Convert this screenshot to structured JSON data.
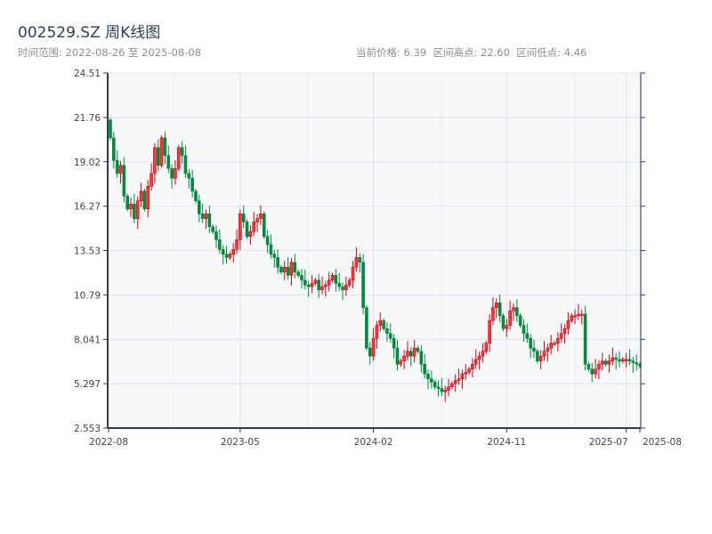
{
  "header": {
    "title": "002529.SZ 周K线图",
    "range": "时间范围: 2022-08-26 至 2025-08-08",
    "stats": "当前价格: 6.39  区间高点: 22.60  区间低点: 4.46"
  },
  "colors": {
    "up": "#d7000f",
    "down": "#00893c",
    "plot_bg": "#f6f8fa",
    "axis": "#2c3e50",
    "grid": "#e1e4ea"
  },
  "chart_data": {
    "type": "candlestick",
    "title": "002529.SZ 周K线图",
    "ylim": [
      2.553,
      24.51
    ],
    "y_ticks": [
      "24.51",
      "21.76",
      "19.02",
      "16.27",
      "13.53",
      "10.79",
      "8.041",
      "5.297",
      "2.553"
    ],
    "x_ticks": [
      {
        "label": "2022-08",
        "index": -0.5
      },
      {
        "label": "2023-05",
        "index": 38
      },
      {
        "label": "2024-02",
        "index": 77
      },
      {
        "label": "2024-11",
        "index": 116
      },
      {
        "label": "2025-07",
        "index": 151
      },
      {
        "label": "2025-08",
        "index": 155
      }
    ],
    "first_open": 21.6,
    "close": [
      20.5,
      19.1,
      18.3,
      18.8,
      16.9,
      16.1,
      16.4,
      15.5,
      16.6,
      17.2,
      16.1,
      17.5,
      18.3,
      19.9,
      18.8,
      20.5,
      19.4,
      18.6,
      18.0,
      18.6,
      19.9,
      19.4,
      18.3,
      18.0,
      17.2,
      16.6,
      15.8,
      15.5,
      15.8,
      15.0,
      14.7,
      14.2,
      13.6,
      13.3,
      13.1,
      13.3,
      13.6,
      14.2,
      15.8,
      15.3,
      14.4,
      14.7,
      15.3,
      15.5,
      15.8,
      14.4,
      13.9,
      13.3,
      13.1,
      12.5,
      12.2,
      12.5,
      12.0,
      12.8,
      12.2,
      12.0,
      11.7,
      11.4,
      11.3,
      11.5,
      11.7,
      11.1,
      11.3,
      11.4,
      11.7,
      12.0,
      11.5,
      11.3,
      11.1,
      11.4,
      11.7,
      12.5,
      13.1,
      12.8,
      10.0,
      7.5,
      7.0,
      8.1,
      8.9,
      9.2,
      8.7,
      8.4,
      8.1,
      7.5,
      6.5,
      6.7,
      7.0,
      7.3,
      7.0,
      7.5,
      7.3,
      6.5,
      5.9,
      5.6,
      5.4,
      5.1,
      5.0,
      4.8,
      4.9,
      5.1,
      5.3,
      5.5,
      5.6,
      5.9,
      6.0,
      6.2,
      6.5,
      6.8,
      7.0,
      7.3,
      7.8,
      9.2,
      10.0,
      10.3,
      9.5,
      8.7,
      8.9,
      9.8,
      10.0,
      9.5,
      8.9,
      8.4,
      8.1,
      7.5,
      7.3,
      6.7,
      7.0,
      7.3,
      7.5,
      7.8,
      7.8,
      8.1,
      8.4,
      8.7,
      9.2,
      9.5,
      9.5,
      9.6,
      9.6,
      6.5,
      6.2,
      5.9,
      6.2,
      6.5,
      6.7,
      6.5,
      6.7,
      6.9,
      6.8,
      6.7,
      6.8,
      6.8,
      6.7,
      6.6,
      6.5,
      6.39
    ]
  }
}
